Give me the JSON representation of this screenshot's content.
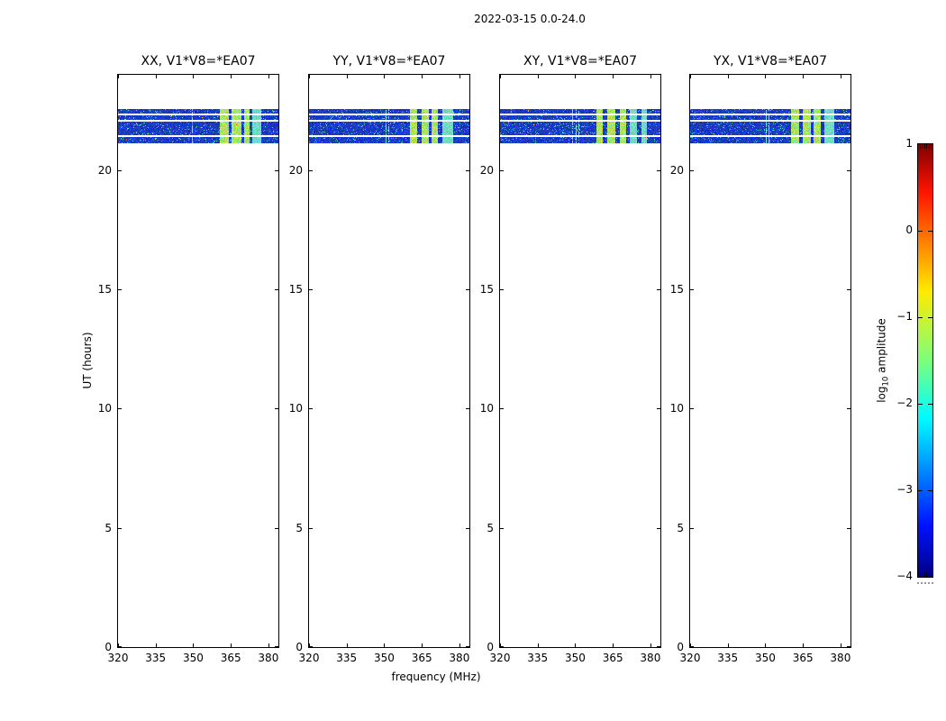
{
  "chart_data": {
    "type": "heatmap",
    "title": "2022-03-15 0.0-24.0",
    "xlabel": "frequency (MHz)",
    "ylabel": "UT (hours)",
    "xlim": [
      320,
      384
    ],
    "ylim": [
      0,
      24
    ],
    "x_ticks": [
      320,
      335,
      350,
      365,
      380
    ],
    "y_ticks": [
      0,
      5,
      10,
      15,
      20
    ],
    "grid": false,
    "colorbar": {
      "label": "log10 amplitude",
      "label_parts": {
        "prefix": "log",
        "sub": "10",
        "suffix": " amplitude"
      },
      "cmap": "jet",
      "vmin": -4,
      "vmax": 1,
      "tick_values": [
        1,
        0,
        -1,
        -2,
        -3,
        -4
      ],
      "tick_labels": [
        "1",
        "0",
        "−1",
        "−2",
        "−3",
        "−4"
      ],
      "gradient_top_to_bottom": [
        [
          "0%",
          "#7f0000"
        ],
        [
          "11%",
          "#ff1300"
        ],
        [
          "34%",
          "#ffeb00"
        ],
        [
          "50%",
          "#7dff7a"
        ],
        [
          "63%",
          "#00fcff"
        ],
        [
          "66%",
          "#00e4ff"
        ],
        [
          "88%",
          "#0012ff"
        ],
        [
          "100%",
          "#000083"
        ]
      ]
    },
    "band": {
      "ut_start": 21.13,
      "ut_end": 22.56,
      "gaps_ut": [
        [
          22.3,
          22.37
        ],
        [
          22.04,
          22.11
        ],
        [
          21.4,
          21.47
        ]
      ],
      "base_color": "#0a1e96",
      "speckle_color": "#3cc8e6",
      "stripe_color": "#b4dc5a",
      "patch_color": "#6ed7be"
    },
    "panels": [
      {
        "title": "XX, V1*V8=*EA07",
        "rfi_lines_mhz": [
          {
            "f": 349.6,
            "w": 1,
            "strength": 0.75
          }
        ],
        "green_stripes_mhz": [
          [
            360.6,
            364.2
          ],
          [
            365.4,
            369.2
          ],
          [
            370.3,
            372.6
          ]
        ],
        "cyan_patches_mhz": [
          [
            373.6,
            377.2
          ]
        ]
      },
      {
        "title": "YY, V1*V8=*EA07",
        "rfi_lines_mhz": [
          {
            "f": 350.7,
            "w": 1,
            "strength": 0.85
          },
          {
            "f": 351.8,
            "w": 1,
            "strength": 0.8
          }
        ],
        "green_stripes_mhz": [
          [
            360.4,
            363.3
          ],
          [
            364.9,
            367.7
          ],
          [
            368.9,
            371.4
          ]
        ],
        "cyan_patches_mhz": [
          [
            373.3,
            377.6
          ]
        ]
      },
      {
        "title": "XY, V1*V8=*EA07",
        "rfi_lines_mhz": [
          {
            "f": 348.9,
            "w": 1,
            "strength": 0.7
          },
          {
            "f": 350.3,
            "w": 1,
            "strength": 0.8
          },
          {
            "f": 351.2,
            "w": 1,
            "strength": 0.6
          }
        ],
        "green_stripes_mhz": [
          [
            358.3,
            361.1
          ],
          [
            362.9,
            366.1
          ],
          [
            367.7,
            370.3
          ]
        ],
        "cyan_patches_mhz": [
          [
            371.9,
            374.5
          ],
          [
            376.3,
            378.7
          ]
        ]
      },
      {
        "title": "YX, V1*V8=*EA07",
        "rfi_lines_mhz": [
          {
            "f": 350.2,
            "w": 1,
            "strength": 0.9
          },
          {
            "f": 351.3,
            "w": 1,
            "strength": 0.8
          }
        ],
        "green_stripes_mhz": [
          [
            360.3,
            363.5
          ],
          [
            364.9,
            368.1
          ],
          [
            369.3,
            372.3
          ]
        ],
        "cyan_patches_mhz": [
          [
            373.5,
            377.7
          ]
        ]
      }
    ]
  }
}
